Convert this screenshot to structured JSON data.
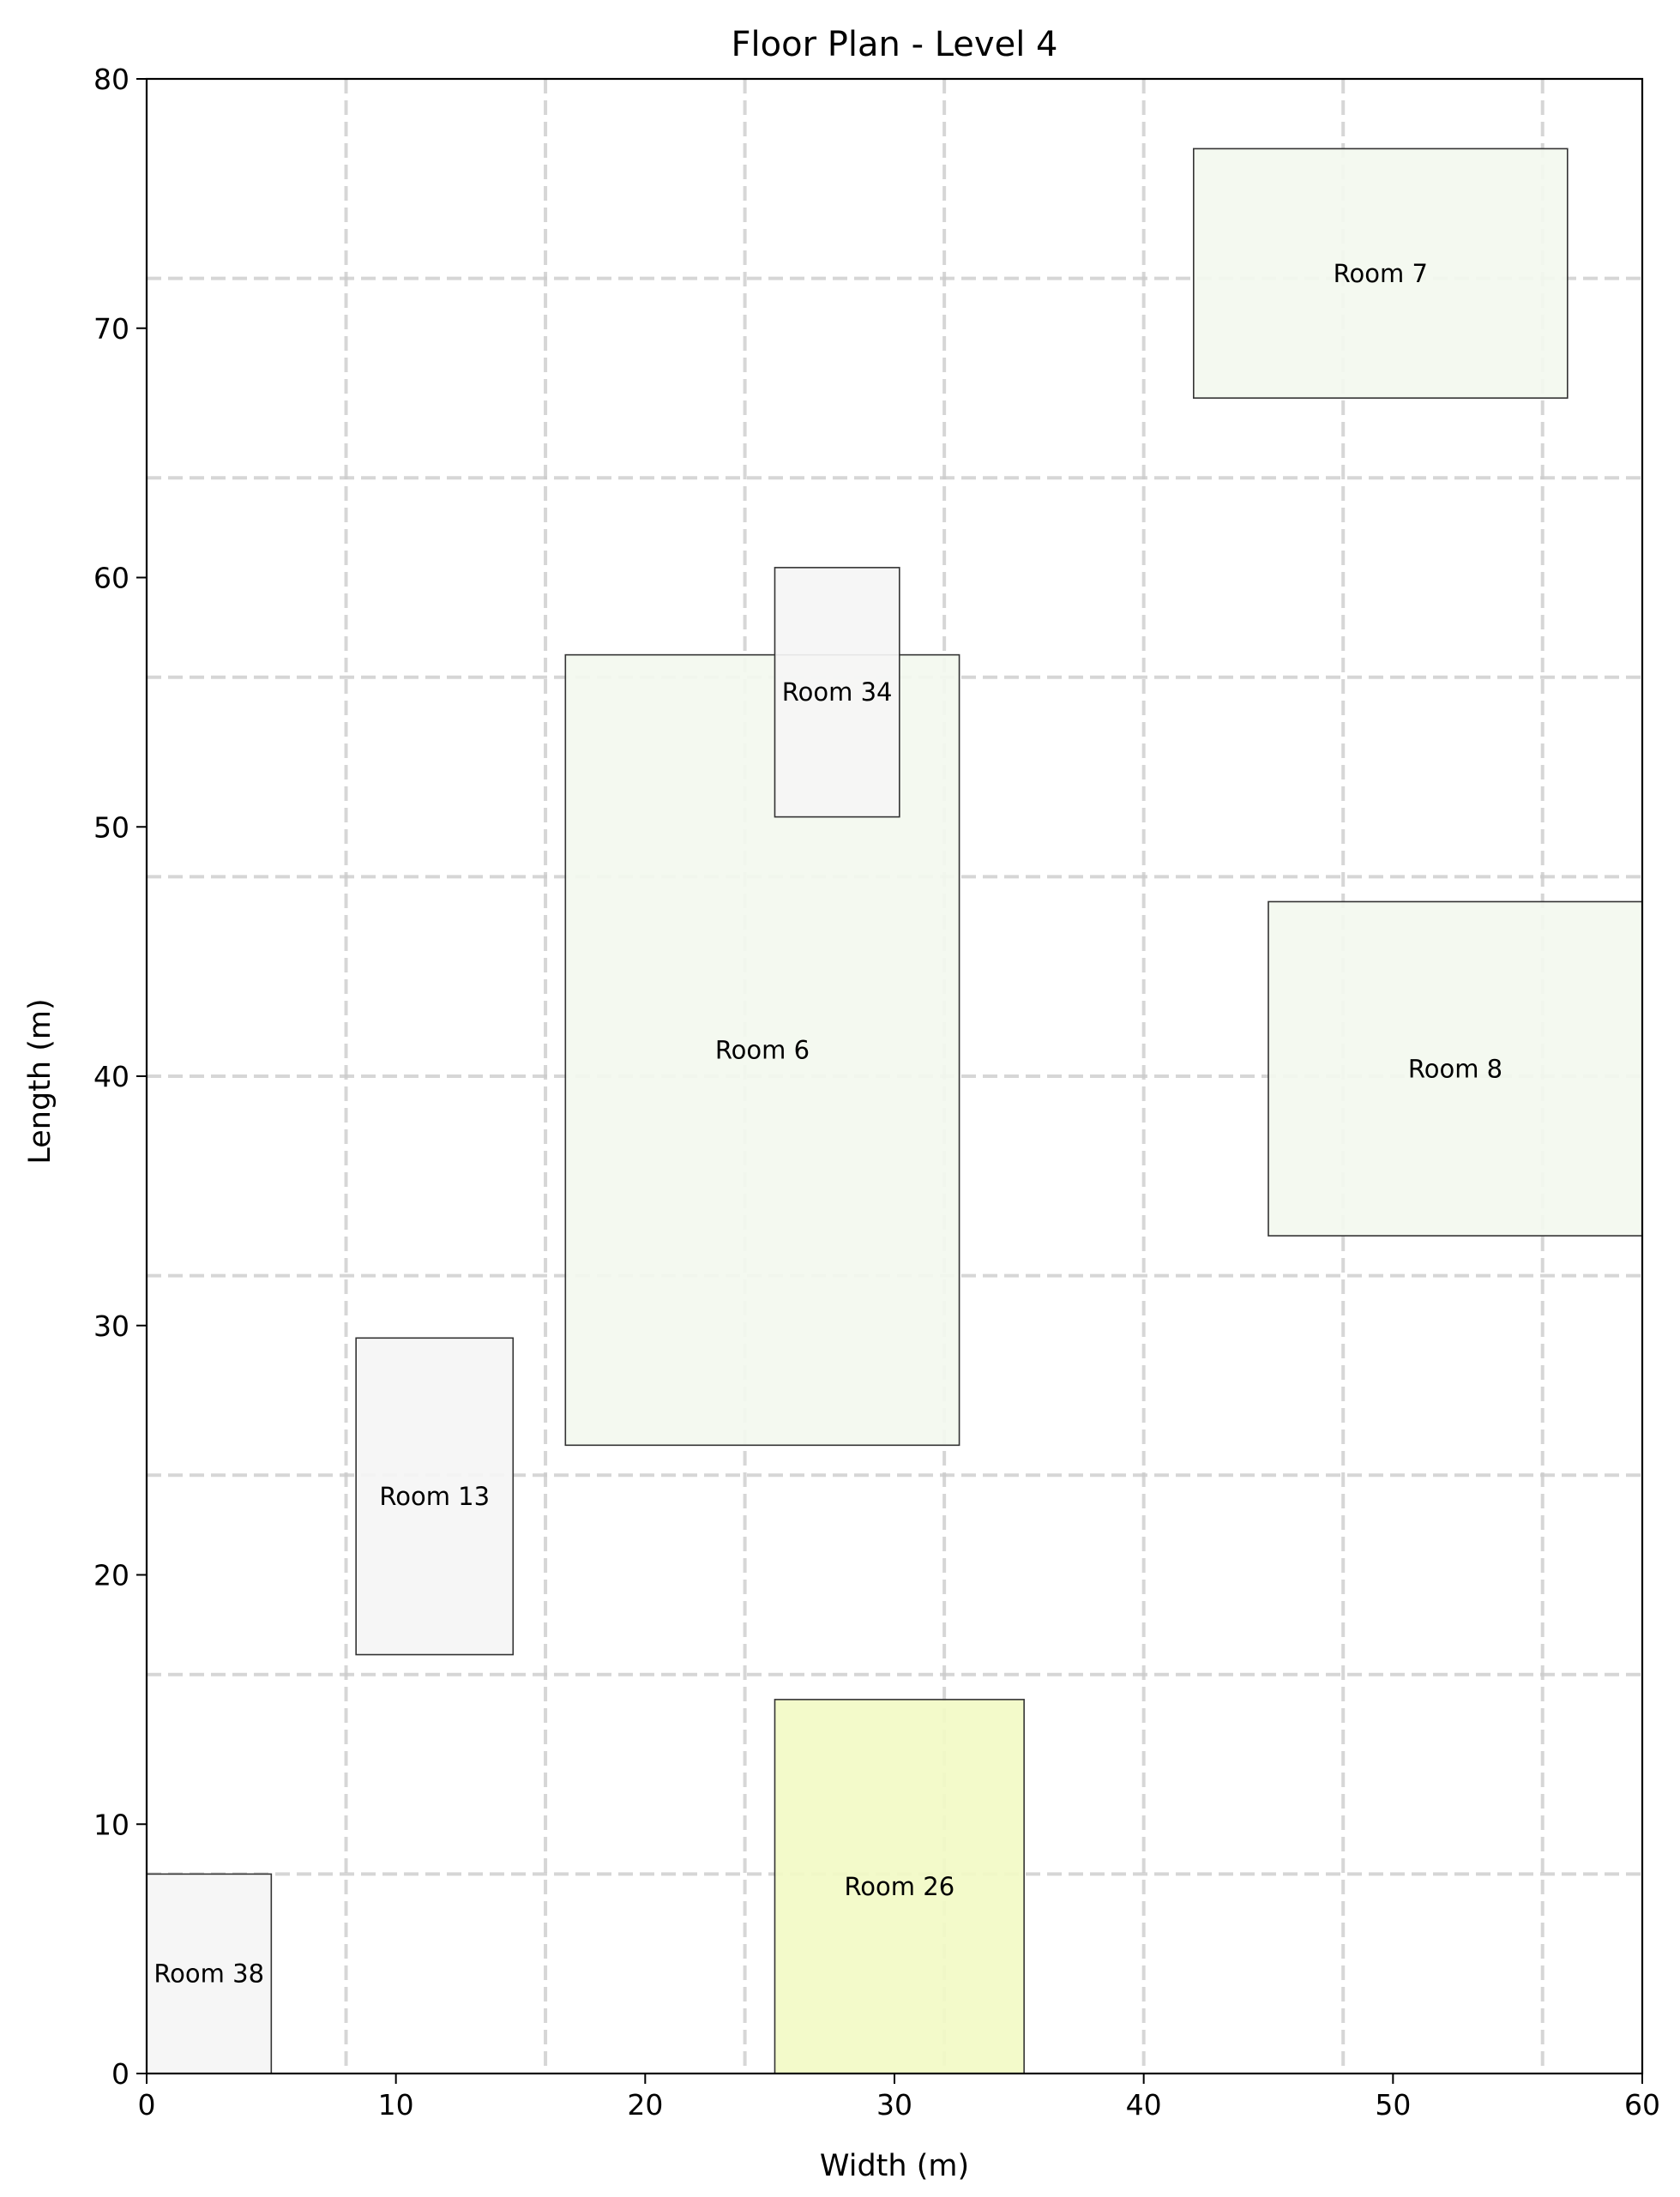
{
  "chart_data": {
    "type": "floor-plan",
    "title": "Floor Plan - Level 4",
    "xlabel": "Width (m)",
    "ylabel": "Length (m)",
    "xlim": [
      0,
      60
    ],
    "ylim": [
      0,
      80
    ],
    "xticks": [
      0,
      10,
      20,
      30,
      40,
      50,
      60
    ],
    "yticks": [
      0,
      10,
      20,
      30,
      40,
      50,
      60,
      70,
      80
    ],
    "grid": true,
    "grid_x": [
      8,
      16,
      24,
      32,
      40,
      48,
      56
    ],
    "grid_y": [
      8,
      16,
      24,
      32,
      40,
      48,
      56,
      64,
      72
    ],
    "rooms": [
      {
        "label": "Room 38",
        "x": 0.0,
        "y": 0.0,
        "width": 5.0,
        "height": 8.0,
        "color": "#f5f5f5"
      },
      {
        "label": "Room 13",
        "x": 8.4,
        "y": 16.8,
        "width": 6.3,
        "height": 12.7,
        "color": "#f5f5f5"
      },
      {
        "label": "Room 26",
        "x": 25.2,
        "y": 0.0,
        "width": 10.0,
        "height": 15.0,
        "color": "#f2fac6"
      },
      {
        "label": "Room 6",
        "x": 16.8,
        "y": 25.2,
        "width": 15.8,
        "height": 31.7,
        "color": "#f3f9ef"
      },
      {
        "label": "Room 34",
        "x": 25.2,
        "y": 50.4,
        "width": 5.0,
        "height": 10.0,
        "color": "#f5f5f5"
      },
      {
        "label": "Room 8",
        "x": 45.0,
        "y": 33.6,
        "width": 15.0,
        "height": 13.4,
        "color": "#f3f9ef"
      },
      {
        "label": "Room 7",
        "x": 42.0,
        "y": 67.2,
        "width": 15.0,
        "height": 10.0,
        "color": "#f3f9ef"
      }
    ]
  }
}
